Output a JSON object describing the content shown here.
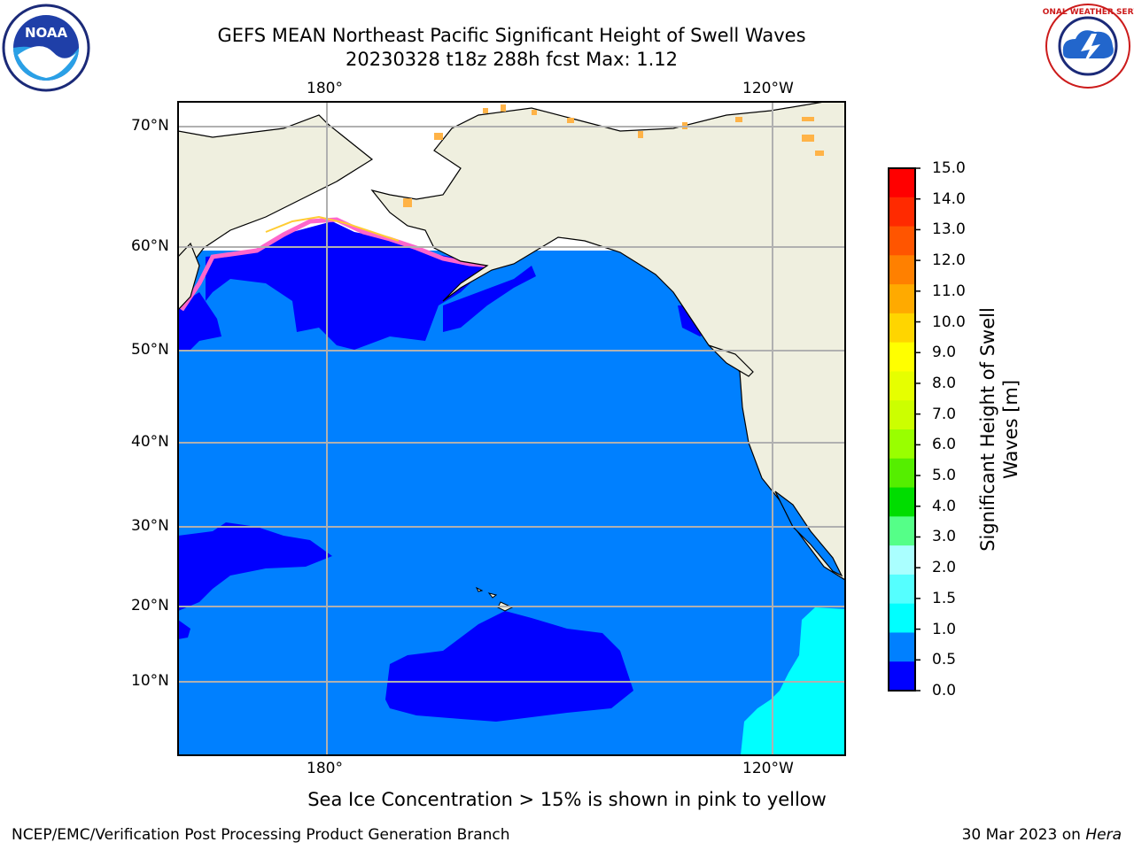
{
  "title": {
    "line1": "GEFS MEAN Northeast Pacific Significant Height of Swell Waves",
    "line2": "20230328 t18z 288h fcst   Max: 1.12"
  },
  "map": {
    "lon_labels_top": [
      "180°",
      "120°W"
    ],
    "lon_labels_bottom": [
      "180°",
      "120°W"
    ],
    "lat_labels": [
      "70°N",
      "60°N",
      "50°N",
      "40°N",
      "30°N",
      "20°N",
      "10°N"
    ],
    "colors": {
      "land": "#efefdf",
      "ocean_0_0.5": "#0000ff",
      "ocean_0.5_1.0": "#0080ff",
      "ocean_1.0_1.5": "#00ffff",
      "ice_free": "#ffffff",
      "grid": "#b0b0b0"
    }
  },
  "colorbar": {
    "label_line1": "Significant Height of Swell",
    "label_line2": "Waves [m]",
    "ticks": [
      "15.0",
      "14.0",
      "13.0",
      "12.0",
      "11.0",
      "10.0",
      "9.0",
      "8.0",
      "7.0",
      "6.0",
      "5.0",
      "4.0",
      "3.0",
      "2.0",
      "1.5",
      "1.0",
      "0.5",
      "0.0"
    ],
    "colors_top_to_bottom": [
      "#ff0000",
      "#ff2a00",
      "#ff5500",
      "#ff8000",
      "#ffaa00",
      "#ffd500",
      "#ffff00",
      "#e6ff00",
      "#ccff00",
      "#99ff00",
      "#55ee00",
      "#00dd00",
      "#55ff88",
      "#aaffff",
      "#55ffff",
      "#00ffff",
      "#0080ff",
      "#0000ff"
    ]
  },
  "notes": {
    "ice": "Sea Ice Concentration > 15% is shown in pink to yellow"
  },
  "footer": {
    "left": "NCEP/EMC/Verification Post Processing Product Generation Branch",
    "right_date": "30 Mar 2023 on",
    "right_host": "Hera"
  },
  "logos": {
    "noaa_text": "NOAA",
    "nws_text": "NATIONAL WEATHER SERVICE"
  }
}
